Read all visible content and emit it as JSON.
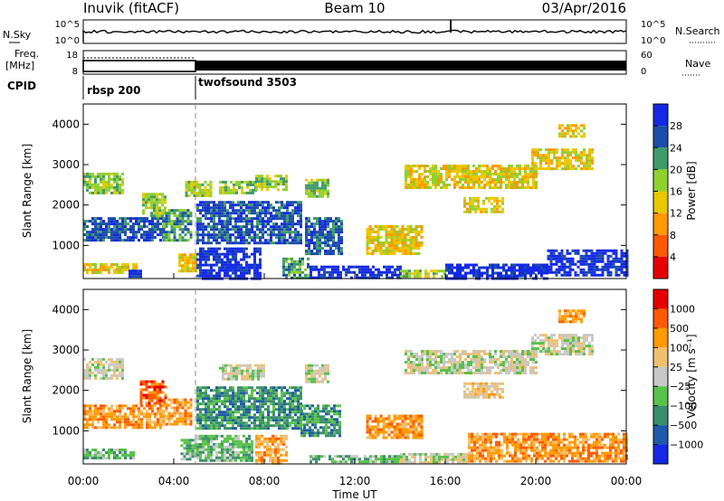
{
  "header": {
    "station": "Inuvik (fitACF)",
    "beam": "Beam 10",
    "date": "03/Apr/2016"
  },
  "strips": {
    "nsky_label": "N.Sky",
    "nsearch_label": "N.Search",
    "nsky_ticks": [
      "10^5",
      "10^0"
    ],
    "nsearch_ticks": [
      "10^5",
      "10^0"
    ],
    "freq_label_1": "Freq.",
    "freq_label_2": "[MHz]",
    "freq_ticks": [
      "18",
      "8"
    ],
    "nave_label": "Nave",
    "nave_ticks": [
      "60",
      "0"
    ],
    "cpid_label": "CPID",
    "cpid_segments": [
      {
        "name": "rbsp 200",
        "start_hour": 0,
        "end_hour": 5.0
      },
      {
        "name": "twofsound 3503",
        "start_hour": 5.0,
        "end_hour": 24
      }
    ]
  },
  "chart_data": [
    {
      "type": "heatmap",
      "panel": "power",
      "ylabel": "Slant Range [km]",
      "colorbar_label": "Power [dB]",
      "colorbar_ticks": [
        "28",
        "24",
        "20",
        "16",
        "12",
        "8",
        "4"
      ],
      "colorbar_colors": [
        "#e60000",
        "#ff5a00",
        "#ff9a00",
        "#e9c800",
        "#8fd12e",
        "#3f9b6a",
        "#1b4ea8",
        "#1428e6"
      ],
      "yticks": [
        1000,
        2000,
        3000,
        4000
      ],
      "ylim": [
        180,
        4500
      ],
      "xlim_hours": [
        0,
        24
      ],
      "regions": [
        {
          "t0": 0.0,
          "t1": 2.3,
          "r0": 300,
          "r1": 560,
          "level": 3
        },
        {
          "t0": 2.0,
          "t1": 2.6,
          "r0": 250,
          "r1": 400,
          "level": 7
        },
        {
          "t0": 0.0,
          "t1": 3.6,
          "r0": 1100,
          "r1": 1700,
          "level": 6
        },
        {
          "t0": 0.0,
          "t1": 1.8,
          "r0": 2300,
          "r1": 2800,
          "level": 4
        },
        {
          "t0": 2.6,
          "t1": 3.6,
          "r0": 1700,
          "r1": 2300,
          "level": 4
        },
        {
          "t0": 3.5,
          "t1": 4.8,
          "r0": 1150,
          "r1": 1900,
          "level": 5
        },
        {
          "t0": 4.2,
          "t1": 5.0,
          "r0": 350,
          "r1": 800,
          "level": 3
        },
        {
          "t0": 4.5,
          "t1": 5.6,
          "r0": 2200,
          "r1": 2600,
          "level": 4
        },
        {
          "t0": 5.0,
          "t1": 9.6,
          "r0": 1050,
          "r1": 2100,
          "level": 6
        },
        {
          "t0": 6.0,
          "t1": 7.6,
          "r0": 2300,
          "r1": 2600,
          "level": 4
        },
        {
          "t0": 5.0,
          "t1": 7.8,
          "r0": 200,
          "r1": 950,
          "level": 7
        },
        {
          "t0": 7.6,
          "t1": 9.0,
          "r0": 2400,
          "r1": 2750,
          "level": 4
        },
        {
          "t0": 8.8,
          "t1": 10.0,
          "r0": 200,
          "r1": 700,
          "level": 5
        },
        {
          "t0": 9.8,
          "t1": 11.4,
          "r0": 800,
          "r1": 1700,
          "level": 6
        },
        {
          "t0": 9.8,
          "t1": 10.8,
          "r0": 2200,
          "r1": 2650,
          "level": 4
        },
        {
          "t0": 10.0,
          "t1": 14.0,
          "r0": 200,
          "r1": 500,
          "level": 7
        },
        {
          "t0": 14.0,
          "t1": 16.0,
          "r0": 200,
          "r1": 400,
          "level": 4
        },
        {
          "t0": 16.0,
          "t1": 20.5,
          "r0": 200,
          "r1": 550,
          "level": 7
        },
        {
          "t0": 20.5,
          "t1": 24.0,
          "r0": 250,
          "r1": 900,
          "level": 7
        },
        {
          "t0": 14.2,
          "t1": 20.0,
          "r0": 2400,
          "r1": 3000,
          "level": 3
        },
        {
          "t0": 16.8,
          "t1": 18.6,
          "r0": 1800,
          "r1": 2200,
          "level": 3
        },
        {
          "t0": 19.8,
          "t1": 22.5,
          "r0": 2900,
          "r1": 3400,
          "level": 3
        },
        {
          "t0": 12.5,
          "t1": 15.0,
          "r0": 800,
          "r1": 1500,
          "level": 3
        },
        {
          "t0": 21.0,
          "t1": 22.2,
          "r0": 3700,
          "r1": 4000,
          "level": 3
        }
      ]
    },
    {
      "type": "heatmap",
      "panel": "velocity",
      "ylabel": "Slant Range [km]",
      "xlabel": "Time UT",
      "colorbar_label": "Velocity [m s⁻¹]",
      "colorbar_ticks": [
        "1000",
        "500",
        "100",
        "25",
        "−25",
        "−100",
        "−500",
        "−1000"
      ],
      "colorbar_colors": [
        "#1428e6",
        "#1f5aa8",
        "#3a8f6c",
        "#58c24a",
        "#c8c8c8",
        "#f0c070",
        "#ff9a00",
        "#ff5a00",
        "#e60000"
      ],
      "xticks": [
        "00:00",
        "04:00",
        "08:00",
        "12:00",
        "16:00",
        "20:00",
        "00:00"
      ],
      "yticks": [
        1000,
        2000,
        3000,
        4000
      ],
      "ylim": [
        180,
        4500
      ],
      "xlim_hours": [
        0,
        24
      ],
      "regions": [
        {
          "t0": 0.0,
          "t1": 2.2,
          "r0": 300,
          "r1": 560,
          "level": 3
        },
        {
          "t0": 0.0,
          "t1": 3.5,
          "r0": 1100,
          "r1": 1650,
          "level": 6
        },
        {
          "t0": 0.0,
          "t1": 1.8,
          "r0": 2300,
          "r1": 2800,
          "level": 4
        },
        {
          "t0": 2.5,
          "t1": 3.6,
          "r0": 1700,
          "r1": 2250,
          "level": 7
        },
        {
          "t0": 3.5,
          "t1": 4.8,
          "r0": 1150,
          "r1": 1800,
          "level": 6
        },
        {
          "t0": 4.3,
          "t1": 5.0,
          "r0": 300,
          "r1": 800,
          "level": 3
        },
        {
          "t0": 5.0,
          "t1": 9.6,
          "r0": 1050,
          "r1": 2100,
          "level": 2
        },
        {
          "t0": 5.0,
          "t1": 7.5,
          "r0": 250,
          "r1": 900,
          "level": 3
        },
        {
          "t0": 6.0,
          "t1": 8.0,
          "r0": 2300,
          "r1": 2650,
          "level": 4
        },
        {
          "t0": 7.6,
          "t1": 9.0,
          "r0": 200,
          "r1": 900,
          "level": 6
        },
        {
          "t0": 9.6,
          "t1": 11.3,
          "r0": 900,
          "r1": 1650,
          "level": 2
        },
        {
          "t0": 10.0,
          "t1": 14.0,
          "r0": 200,
          "r1": 400,
          "level": 3
        },
        {
          "t0": 14.0,
          "t1": 17.0,
          "r0": 200,
          "r1": 450,
          "level": 4
        },
        {
          "t0": 17.0,
          "t1": 24.0,
          "r0": 250,
          "r1": 950,
          "level": 6
        },
        {
          "t0": 14.2,
          "t1": 20.0,
          "r0": 2400,
          "r1": 3000,
          "level": 4
        },
        {
          "t0": 16.8,
          "t1": 18.6,
          "r0": 1800,
          "r1": 2200,
          "level": 5
        },
        {
          "t0": 19.8,
          "t1": 22.5,
          "r0": 2900,
          "r1": 3400,
          "level": 4
        },
        {
          "t0": 9.8,
          "t1": 10.8,
          "r0": 2200,
          "r1": 2650,
          "level": 4
        },
        {
          "t0": 12.5,
          "t1": 15.0,
          "r0": 800,
          "r1": 1400,
          "level": 6
        },
        {
          "t0": 21.0,
          "t1": 22.2,
          "r0": 3700,
          "r1": 4000,
          "level": 6
        }
      ]
    }
  ]
}
